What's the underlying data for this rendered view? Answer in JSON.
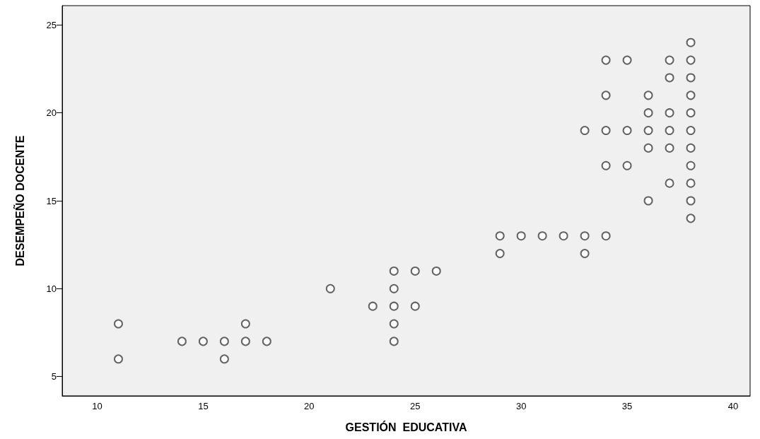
{
  "chart_data": {
    "type": "scatter",
    "xlabel": "GESTIÓN  EDUCATIVA",
    "ylabel": "DESEMPEÑO DOCENTE",
    "x": [
      11,
      11,
      14,
      15,
      16,
      16,
      17,
      17,
      18,
      21,
      23,
      24,
      24,
      24,
      24,
      24,
      25,
      25,
      26,
      29,
      29,
      30,
      31,
      32,
      33,
      33,
      33,
      34,
      34,
      34,
      34,
      34,
      35,
      35,
      35,
      36,
      36,
      36,
      36,
      36,
      37,
      37,
      37,
      37,
      37,
      37,
      38,
      38,
      38,
      38,
      38,
      38,
      38,
      38,
      38,
      38,
      38
    ],
    "values": [
      8,
      6,
      7,
      7,
      7,
      6,
      8,
      7,
      7,
      10,
      9,
      11,
      10,
      9,
      8,
      7,
      11,
      9,
      11,
      13,
      12,
      13,
      13,
      13,
      19,
      13,
      12,
      23,
      21,
      19,
      17,
      13,
      23,
      19,
      17,
      21,
      20,
      19,
      18,
      15,
      23,
      22,
      20,
      19,
      18,
      16,
      24,
      23,
      22,
      21,
      20,
      19,
      18,
      17,
      16,
      15,
      14
    ],
    "color": "#404040",
    "marker": "circle",
    "xlim": [
      8.35,
      40.8
    ],
    "xticks": [
      10,
      15,
      20,
      25,
      30,
      35,
      40
    ],
    "ylim": [
      3.9,
      26.1
    ],
    "yticks": [
      5,
      10,
      15,
      20,
      25
    ]
  }
}
